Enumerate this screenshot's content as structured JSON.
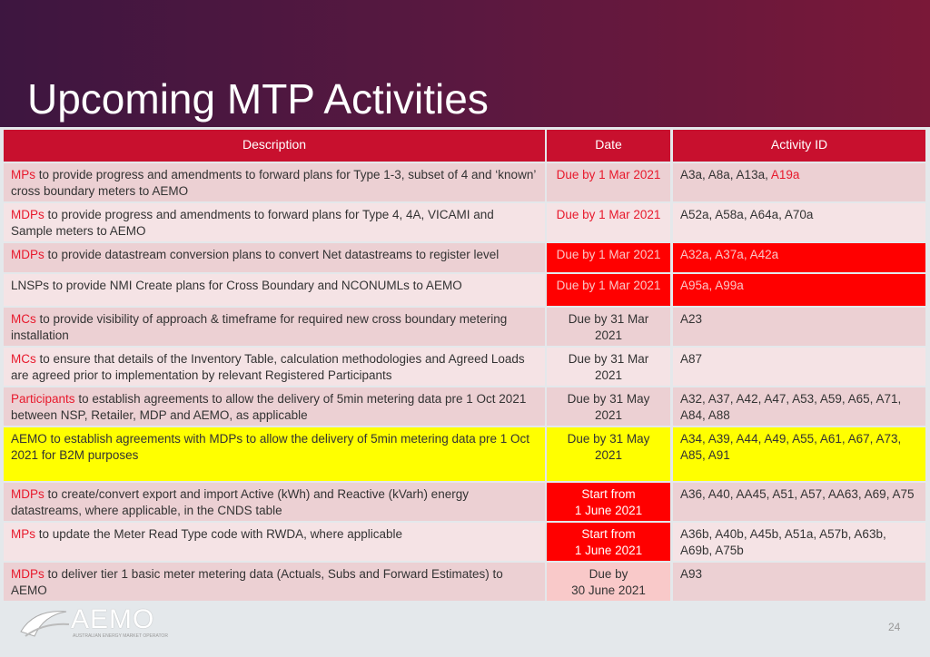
{
  "header": {
    "title": "Upcoming MTP Activities"
  },
  "table": {
    "columns": [
      "Description",
      "Date",
      "Activity ID"
    ],
    "header_fill": "#c8102e",
    "rows": [
      {
        "lead": "MPs",
        "rest": "to provide progress and amendments to forward plans for Type 1-3, subset of 4 and ‘known’ cross boundary meters to AEMO",
        "date": [
          "Due by 1 Mar 2021"
        ],
        "date_color": "#e8192c",
        "ids": "A3a, A8a, A13a,",
        "ids_extra": "A19a",
        "fill": "#ecd0d3"
      },
      {
        "lead": "MDPs",
        "rest": "to provide progress and amendments to forward plans for Type 4, 4A, VICAMI and Sample meters to AEMO",
        "date": [
          "Due by 1 Mar 2021"
        ],
        "date_color": "#e8192c",
        "ids": "A52a, A58a, A64a, A70a",
        "fill": "#f5e3e5"
      },
      {
        "lead": "MDPs",
        "rest": "to provide datastream conversion plans to convert Net datastreams to register level",
        "date": [
          "Due by 1 Mar 2021"
        ],
        "date_fill": "#ff0000",
        "date_color": "#f9c6c6",
        "ids": "A32a, A37a, A42a",
        "id_fill": "#ff0000",
        "id_color": "#f9c6c6",
        "fill": "#ecd0d3"
      },
      {
        "rest": "LNSPs to provide NMI Create plans for Cross Boundary and NCONUMLs to AEMO",
        "date": [
          "Due by 1 Mar 2021"
        ],
        "date_fill": "#ff0000",
        "date_color": "#f9c6c6",
        "ids": "A95a, A99a",
        "id_fill": "#ff0000",
        "id_color": "#f9c6c6",
        "fill": "#f5e3e5"
      },
      {
        "lead": "MCs",
        "rest": "to provide visibility of approach & timeframe for required new cross boundary metering installation",
        "date": [
          "Due by 31 Mar",
          "2021"
        ],
        "ids": "A23",
        "fill": "#ecd0d3"
      },
      {
        "lead": "MCs",
        "rest": "to ensure that details of the Inventory Table, calculation methodologies and Agreed Loads are agreed prior to implementation by relevant Registered Participants",
        "date": [
          "Due by 31 Mar",
          "2021"
        ],
        "ids": "A87",
        "fill": "#f5e3e5"
      },
      {
        "lead": "Participants",
        "rest": "to establish agreements to allow the delivery of 5min metering data pre 1 Oct 2021 between NSP, Retailer, MDP and AEMO, as applicable",
        "date": [
          "Due by 31 May",
          "2021"
        ],
        "ids": "A32, A37, A42, A47, A53, A59, A65, A71, A84, A88",
        "fill": "#ecd0d3"
      },
      {
        "rest": "AEMO to establish agreements with MDPs to allow the delivery of 5min metering data pre 1 Oct 2021 for B2M purposes",
        "date": [
          "Due by 31 May",
          "2021"
        ],
        "ids": "A34, A39, A44, A49, A55, A61, A67, A73, A85, A91",
        "fill": "#ffff00"
      },
      {
        "lead": "MDPs",
        "rest": "to create/convert export and import Active (kWh) and Reactive (kVarh) energy datastreams, where applicable, in the CNDS table",
        "date": [
          "Start from",
          "1 June 2021"
        ],
        "date_fill": "#ff0000",
        "date_color": "#ffffff",
        "ids": "A36, A40, AA45, A51, A57, AA63, A69, A75",
        "fill": "#ecd0d3"
      },
      {
        "lead": "MPs",
        "rest": "to update the Meter Read Type code with RWDA, where applicable",
        "date": [
          "Start from",
          "1 June 2021"
        ],
        "date_fill": "#ff0000",
        "date_color": "#ffffff",
        "ids": "A36b, A40b, A45b, A51a, A57b, A63b, A69b, A75b",
        "fill": "#f5e3e5"
      },
      {
        "lead": "MDPs",
        "rest": "to deliver tier 1 basic meter metering data (Actuals, Subs and Forward Estimates) to AEMO",
        "date": [
          "Due by",
          "30 June 2021"
        ],
        "date_fill": "#f9c9c9",
        "ids": "A93",
        "fill": "#ecd0d3"
      }
    ]
  },
  "footer": {
    "logo": "AEMO",
    "logo_sub": "AUSTRALIAN ENERGY MARKET OPERATOR",
    "page": "24"
  }
}
